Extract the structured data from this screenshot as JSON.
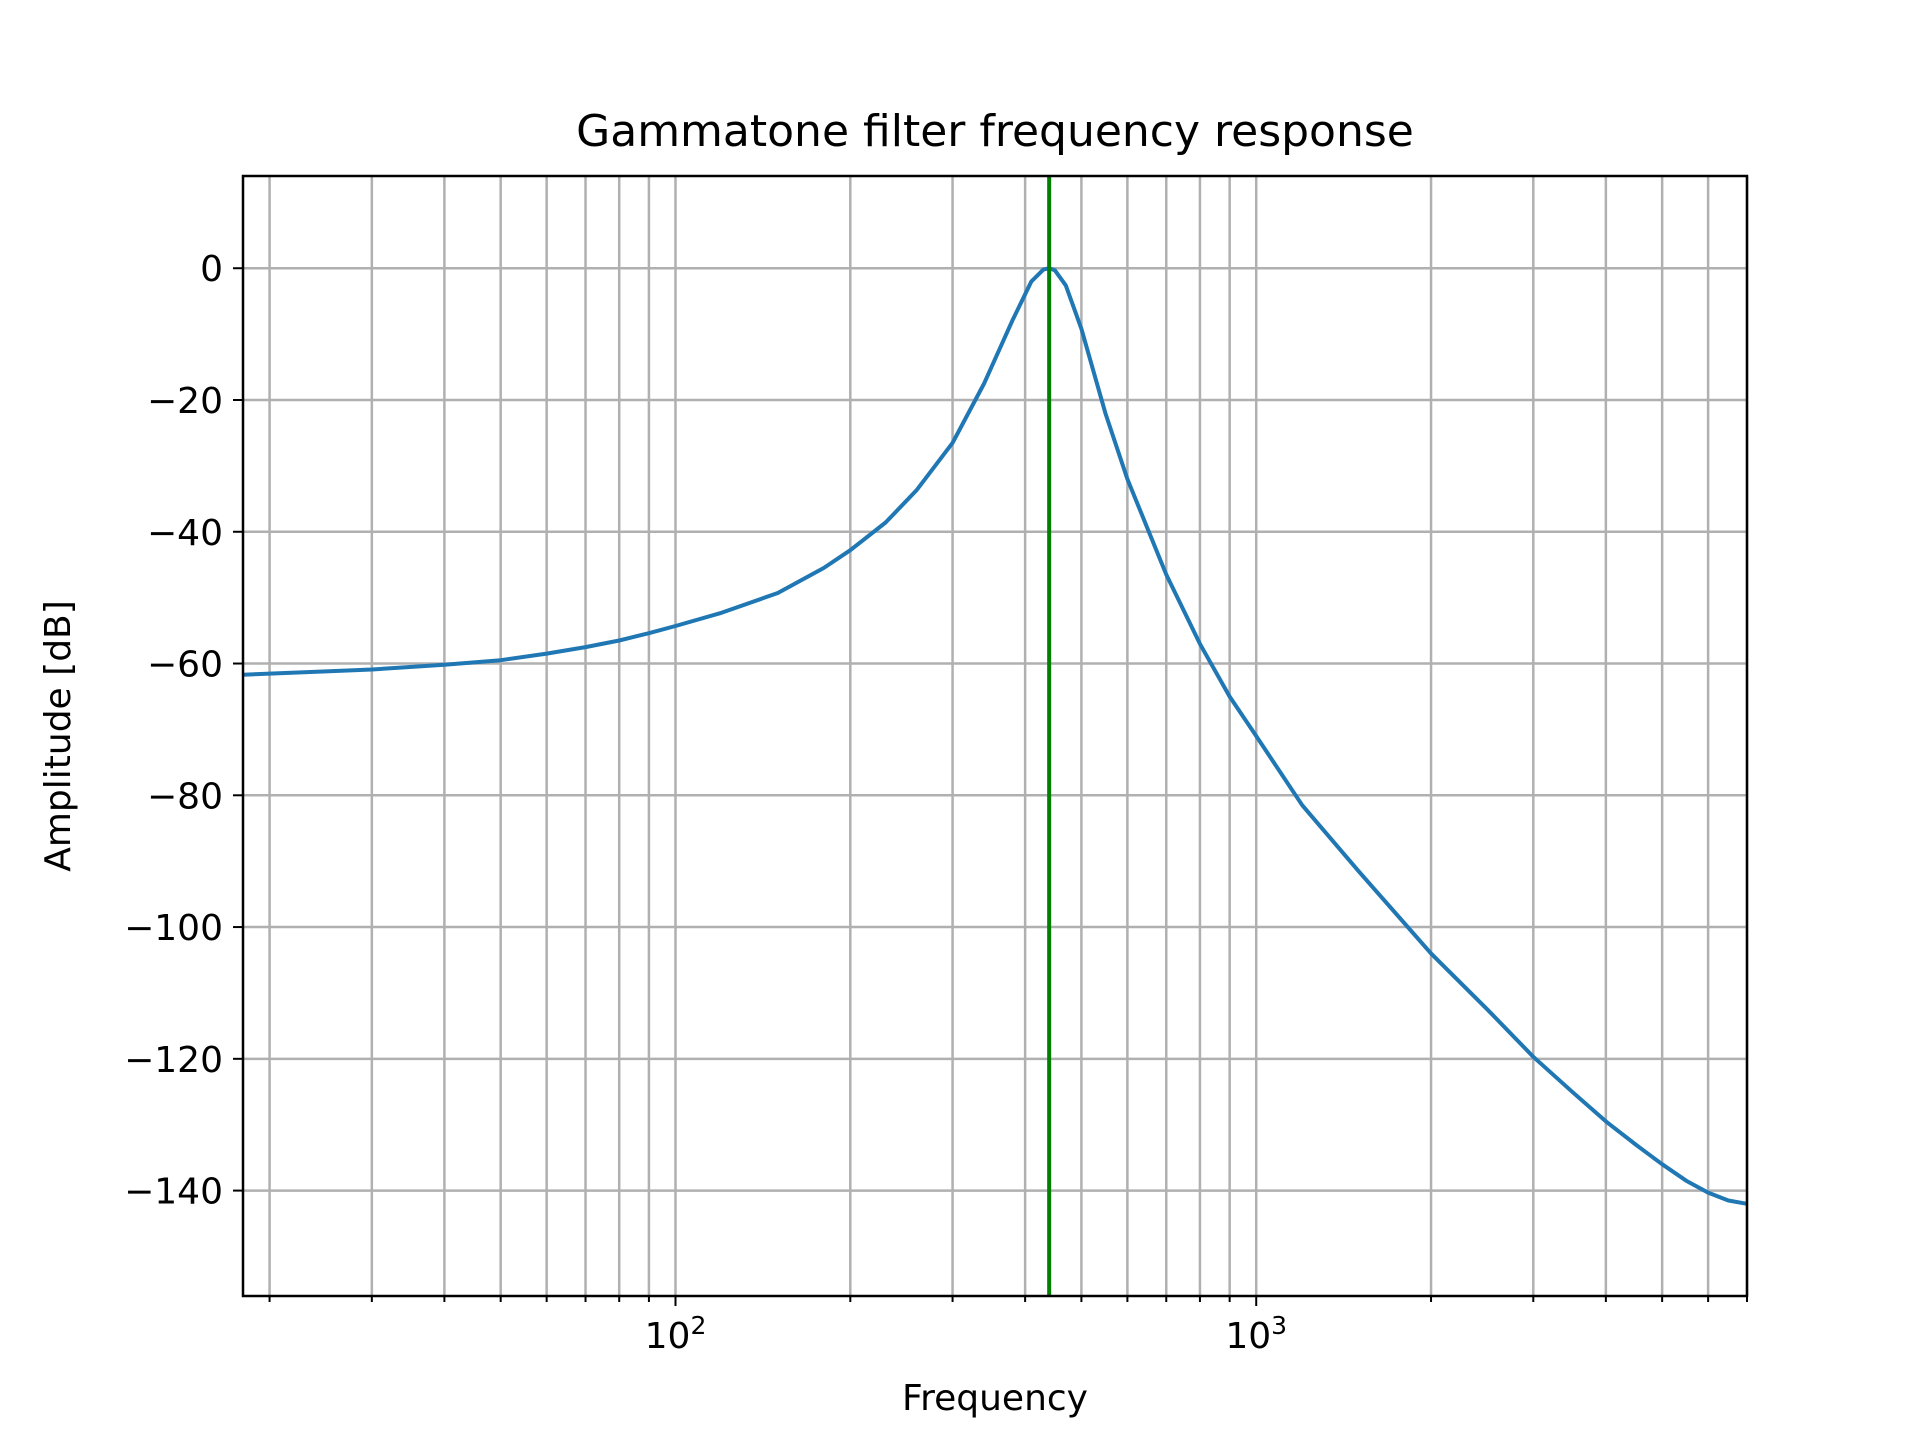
{
  "chart_data": {
    "type": "line",
    "title": "Gammatone filter frequency response",
    "xlabel": "Frequency",
    "ylabel": "Amplitude [dB]",
    "xscale": "log",
    "xlim": [
      18,
      7000
    ],
    "ylim": [
      -156,
      14
    ],
    "grid": true,
    "grid_which": "both",
    "x_ticks": [
      {
        "value": 100,
        "label_base": "10",
        "label_exp": "2"
      },
      {
        "value": 1000,
        "label_base": "10",
        "label_exp": "3"
      }
    ],
    "y_ticks": [
      {
        "value": 0,
        "label": "0"
      },
      {
        "value": -20,
        "label": "−20"
      },
      {
        "value": -40,
        "label": "−40"
      },
      {
        "value": -60,
        "label": "−60"
      },
      {
        "value": -80,
        "label": "−80"
      },
      {
        "value": -100,
        "label": "−100"
      },
      {
        "value": -120,
        "label": "−120"
      },
      {
        "value": -140,
        "label": "−140"
      }
    ],
    "series": [
      {
        "color": "#1f77b4",
        "x": [
          18,
          25,
          30,
          40,
          50,
          60,
          70,
          80,
          90,
          100,
          120,
          150,
          180,
          200,
          230,
          260,
          300,
          340,
          380,
          410,
          430,
          440,
          450,
          470,
          500,
          550,
          600,
          700,
          800,
          900,
          1000,
          1200,
          1500,
          2000,
          2500,
          3000,
          3500,
          4000,
          4500,
          5000,
          5500,
          6000,
          6500,
          7000
        ],
        "y": [
          -61.7,
          -61.2,
          -60.9,
          -60.2,
          -59.5,
          -58.5,
          -57.5,
          -56.5,
          -55.4,
          -54.3,
          -52.3,
          -49.3,
          -45.5,
          -42.8,
          -38.6,
          -33.7,
          -26.5,
          -17.5,
          -8.0,
          -2.0,
          -0.2,
          0.0,
          -0.3,
          -2.6,
          -9.2,
          -22.0,
          -32.0,
          -46.5,
          -57.0,
          -65.0,
          -71.0,
          -81.5,
          -91.5,
          -104.0,
          -112.5,
          -119.7,
          -125.0,
          -129.5,
          -133.0,
          -136.0,
          -138.5,
          -140.3,
          -141.5,
          -142.0
        ]
      }
    ],
    "vlines": [
      {
        "x": 440,
        "color": "#008000"
      }
    ]
  }
}
